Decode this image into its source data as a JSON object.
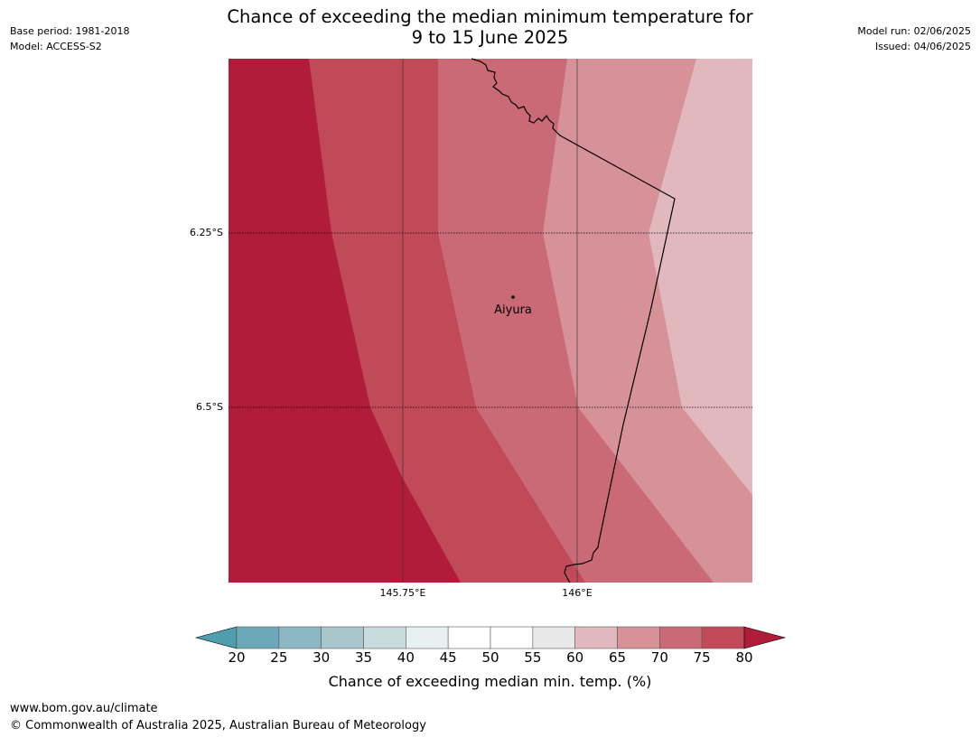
{
  "header": {
    "title_line1": "Chance of exceeding the median minimum temperature for",
    "title_line2": "9 to 15 June 2025",
    "base_period": "Base period: 1981-2018",
    "model": "Model: ACCESS-S2",
    "model_run": "Model run: 02/06/2025",
    "issued": "Issued: 04/06/2025"
  },
  "map": {
    "lat_ticks": [
      "6.25°S",
      "6.5°S"
    ],
    "lon_ticks": [
      "145.75°E",
      "146°E"
    ],
    "place": "Aiyura",
    "gridlines": true,
    "shading_colors": [
      "#b01c39",
      "#c04a58",
      "#ca6a76",
      "#d69298",
      "#e0b8bd"
    ]
  },
  "colorbar": {
    "ticks": [
      "20",
      "25",
      "30",
      "35",
      "40",
      "45",
      "50",
      "55",
      "60",
      "65",
      "70",
      "75",
      "80"
    ],
    "colors": [
      "#6aaab8",
      "#8cb7c3",
      "#a9c6cd",
      "#c9dadd",
      "#e8f0f2",
      "#ffffff",
      "#ffffff",
      "#e8e8e8",
      "#e0b8bd",
      "#d69298",
      "#ca6a76",
      "#c04a58"
    ],
    "under_color": "#4e9eae",
    "over_color": "#b01c39",
    "label": "Chance of exceeding median min. temp. (%)"
  },
  "footer": {
    "url": "www.bom.gov.au/climate",
    "copyright": "© Commonwealth of Australia 2025, Australian Bureau of Meteorology"
  }
}
